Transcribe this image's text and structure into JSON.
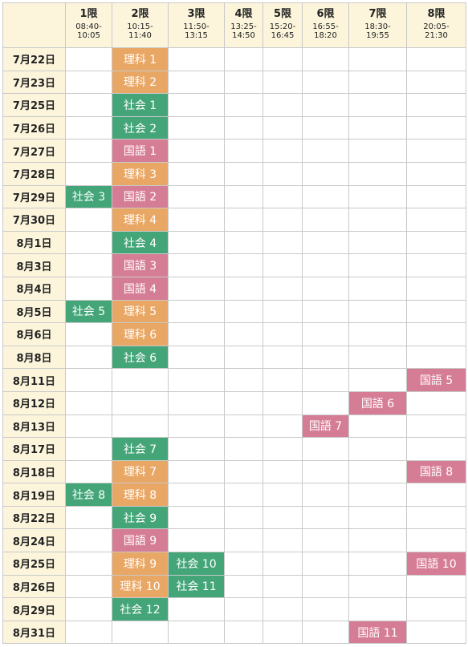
{
  "periods": [
    {
      "name": "1限",
      "time": "08:40-\n10:05"
    },
    {
      "name": "2限",
      "time": "10:15-\n11:40"
    },
    {
      "name": "3限",
      "time": "11:50-\n13:15"
    },
    {
      "name": "4限",
      "time": "13:25-\n14:50"
    },
    {
      "name": "5限",
      "time": "15:20-\n16:45"
    },
    {
      "name": "6限",
      "time": "16:55-\n18:20"
    },
    {
      "name": "7限",
      "time": "18:30-\n19:55"
    },
    {
      "name": "8限",
      "time": "20:05-\n21:30"
    }
  ],
  "subject_colors": {
    "理科": "#e9a765",
    "社会": "#43a578",
    "国語": "#d67d96"
  },
  "rows": [
    {
      "date": "7月22日",
      "cells": [
        null,
        "理科 1",
        null,
        null,
        null,
        null,
        null,
        null
      ]
    },
    {
      "date": "7月23日",
      "cells": [
        null,
        "理科 2",
        null,
        null,
        null,
        null,
        null,
        null
      ]
    },
    {
      "date": "7月25日",
      "cells": [
        null,
        "社会 1",
        null,
        null,
        null,
        null,
        null,
        null
      ]
    },
    {
      "date": "7月26日",
      "cells": [
        null,
        "社会 2",
        null,
        null,
        null,
        null,
        null,
        null
      ]
    },
    {
      "date": "7月27日",
      "cells": [
        null,
        "国語 1",
        null,
        null,
        null,
        null,
        null,
        null
      ]
    },
    {
      "date": "7月28日",
      "cells": [
        null,
        "理科 3",
        null,
        null,
        null,
        null,
        null,
        null
      ]
    },
    {
      "date": "7月29日",
      "cells": [
        "社会 3",
        "国語 2",
        null,
        null,
        null,
        null,
        null,
        null
      ]
    },
    {
      "date": "7月30日",
      "cells": [
        null,
        "理科 4",
        null,
        null,
        null,
        null,
        null,
        null
      ]
    },
    {
      "date": "8月1日",
      "cells": [
        null,
        "社会 4",
        null,
        null,
        null,
        null,
        null,
        null
      ]
    },
    {
      "date": "8月3日",
      "cells": [
        null,
        "国語 3",
        null,
        null,
        null,
        null,
        null,
        null
      ]
    },
    {
      "date": "8月4日",
      "cells": [
        null,
        "国語 4",
        null,
        null,
        null,
        null,
        null,
        null
      ]
    },
    {
      "date": "8月5日",
      "cells": [
        "社会 5",
        "理科 5",
        null,
        null,
        null,
        null,
        null,
        null
      ]
    },
    {
      "date": "8月6日",
      "cells": [
        null,
        "理科 6",
        null,
        null,
        null,
        null,
        null,
        null
      ]
    },
    {
      "date": "8月8日",
      "cells": [
        null,
        "社会 6",
        null,
        null,
        null,
        null,
        null,
        null
      ]
    },
    {
      "date": "8月11日",
      "cells": [
        null,
        null,
        null,
        null,
        null,
        null,
        null,
        "国語 5"
      ]
    },
    {
      "date": "8月12日",
      "cells": [
        null,
        null,
        null,
        null,
        null,
        null,
        "国語 6",
        null
      ]
    },
    {
      "date": "8月13日",
      "cells": [
        null,
        null,
        null,
        null,
        null,
        "国語 7",
        null,
        null
      ]
    },
    {
      "date": "8月17日",
      "cells": [
        null,
        "社会 7",
        null,
        null,
        null,
        null,
        null,
        null
      ]
    },
    {
      "date": "8月18日",
      "cells": [
        null,
        "理科 7",
        null,
        null,
        null,
        null,
        null,
        "国語 8"
      ]
    },
    {
      "date": "8月19日",
      "cells": [
        "社会 8",
        "理科 8",
        null,
        null,
        null,
        null,
        null,
        null
      ]
    },
    {
      "date": "8月22日",
      "cells": [
        null,
        "社会 9",
        null,
        null,
        null,
        null,
        null,
        null
      ]
    },
    {
      "date": "8月24日",
      "cells": [
        null,
        "国語 9",
        null,
        null,
        null,
        null,
        null,
        null
      ]
    },
    {
      "date": "8月25日",
      "cells": [
        null,
        "理科 9",
        "社会 10",
        null,
        null,
        null,
        null,
        "国語 10"
      ]
    },
    {
      "date": "8月26日",
      "cells": [
        null,
        "理科 10",
        "社会 11",
        null,
        null,
        null,
        null,
        null
      ]
    },
    {
      "date": "8月29日",
      "cells": [
        null,
        "社会 12",
        null,
        null,
        null,
        null,
        null,
        null
      ]
    },
    {
      "date": "8月31日",
      "cells": [
        null,
        null,
        null,
        null,
        null,
        null,
        "国語 11",
        null
      ]
    }
  ]
}
